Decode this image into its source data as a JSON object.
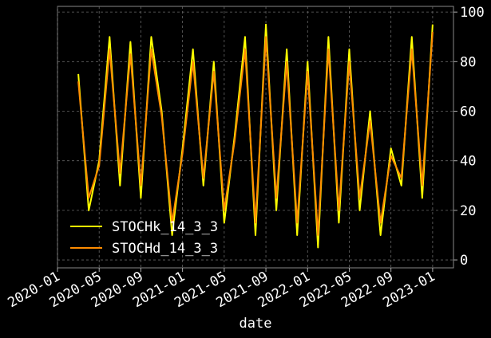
{
  "chart_data": {
    "type": "line",
    "x_label": "date",
    "x": [
      "2020-03",
      "2020-04",
      "2020-05",
      "2020-06",
      "2020-07",
      "2020-08",
      "2020-09",
      "2020-10",
      "2020-11",
      "2020-12",
      "2021-01",
      "2021-02",
      "2021-03",
      "2021-04",
      "2021-05",
      "2021-06",
      "2021-07",
      "2021-08",
      "2021-09",
      "2021-10",
      "2021-11",
      "2021-12",
      "2022-01",
      "2022-02",
      "2022-03",
      "2022-04",
      "2022-05",
      "2022-06",
      "2022-07",
      "2022-08",
      "2022-09",
      "2022-10",
      "2022-11",
      "2022-12",
      "2023-01"
    ],
    "series": [
      {
        "name": "STOCHk_14_3_3",
        "color": "#ffff00",
        "values": [
          75,
          20,
          40,
          90,
          30,
          88,
          25,
          90,
          60,
          10,
          45,
          85,
          30,
          80,
          15,
          50,
          90,
          10,
          95,
          20,
          85,
          10,
          80,
          5,
          90,
          15,
          85,
          20,
          60,
          10,
          45,
          30,
          90,
          25,
          95
        ]
      },
      {
        "name": "STOCHd_14_3_3",
        "color": "#ff8c00",
        "values": [
          72,
          25,
          38,
          85,
          35,
          83,
          30,
          85,
          58,
          15,
          43,
          80,
          33,
          76,
          20,
          48,
          85,
          15,
          90,
          25,
          80,
          15,
          76,
          10,
          85,
          20,
          80,
          25,
          56,
          15,
          42,
          33,
          85,
          30,
          92
        ]
      }
    ],
    "xlim": [
      "2020-01",
      "2023-03"
    ],
    "xticks": [
      "2020-01",
      "2020-05",
      "2020-09",
      "2021-01",
      "2021-05",
      "2021-09",
      "2022-01",
      "2022-05",
      "2022-09",
      "2023-01"
    ],
    "ylim": [
      -3.2,
      102.3
    ],
    "yticks": [
      0,
      20,
      40,
      60,
      80,
      100
    ],
    "y_axis_side": "right",
    "grid": true,
    "legend": "lower left"
  }
}
